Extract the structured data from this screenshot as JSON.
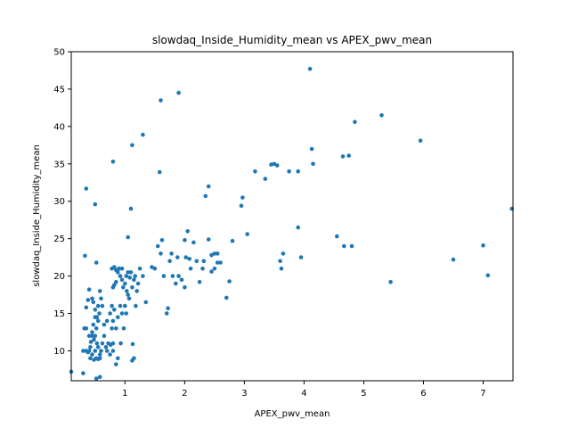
{
  "chart_data": {
    "type": "scatter",
    "title": "slowdaq_Inside_Humidity_mean vs APEX_pwv_mean",
    "xlabel": "APEX_pwv_mean",
    "ylabel": "slowdaq_Inside_Humidity_mean",
    "xlim": [
      0.1,
      7.5
    ],
    "ylim": [
      6,
      50
    ],
    "x_ticks": [
      1,
      2,
      3,
      4,
      5,
      6,
      7
    ],
    "y_ticks": [
      10,
      15,
      20,
      25,
      30,
      35,
      40,
      45,
      50
    ],
    "x_tick_labels": [
      "1",
      "2",
      "3",
      "4",
      "5",
      "6",
      "7"
    ],
    "y_tick_labels": [
      "10",
      "15",
      "20",
      "25",
      "30",
      "35",
      "40",
      "45",
      "50"
    ],
    "grid": false,
    "marker_color": "#1f77b4",
    "points": [
      [
        0.3,
        7.0
      ],
      [
        0.1,
        7.2
      ],
      [
        0.52,
        6.3
      ],
      [
        0.58,
        6.5
      ],
      [
        0.8,
        10.0
      ],
      [
        0.85,
        8.2
      ],
      [
        0.88,
        9.0
      ],
      [
        0.93,
        11.0
      ],
      [
        1.13,
        10.9
      ],
      [
        1.15,
        9.0
      ],
      [
        1.12,
        8.7
      ],
      [
        0.32,
        13.0
      ],
      [
        0.35,
        13.0
      ],
      [
        0.4,
        12.0
      ],
      [
        0.45,
        12.5
      ],
      [
        0.48,
        11.5
      ],
      [
        0.5,
        12.0
      ],
      [
        0.52,
        13.0
      ],
      [
        0.55,
        14.0
      ],
      [
        0.53,
        11.0
      ],
      [
        0.55,
        10.5
      ],
      [
        0.58,
        9.0
      ],
      [
        0.6,
        10.0
      ],
      [
        0.62,
        11.0
      ],
      [
        0.65,
        12.0
      ],
      [
        0.68,
        10.5
      ],
      [
        0.7,
        10.0
      ],
      [
        0.72,
        11.0
      ],
      [
        0.75,
        9.5
      ],
      [
        0.76,
        10.8
      ],
      [
        0.8,
        11.0
      ],
      [
        0.42,
        9.0
      ],
      [
        0.45,
        9.5
      ],
      [
        0.48,
        8.8
      ],
      [
        0.5,
        10.0
      ],
      [
        0.52,
        9.0
      ],
      [
        0.55,
        8.9
      ],
      [
        0.58,
        9.5
      ],
      [
        0.4,
        10.0
      ],
      [
        0.43,
        11.2
      ],
      [
        0.35,
        15.8
      ],
      [
        0.38,
        16.8
      ],
      [
        0.4,
        18.2
      ],
      [
        0.45,
        17.0
      ],
      [
        0.47,
        16.5
      ],
      [
        0.5,
        15.5
      ],
      [
        0.53,
        14.5
      ],
      [
        0.55,
        16.0
      ],
      [
        0.57,
        15.0
      ],
      [
        0.58,
        18.0
      ],
      [
        0.6,
        17.0
      ],
      [
        0.62,
        16.0
      ],
      [
        0.65,
        13.5
      ],
      [
        0.7,
        14.0
      ],
      [
        0.75,
        15.0
      ],
      [
        0.78,
        13.0
      ],
      [
        0.8,
        14.0
      ],
      [
        0.82,
        15.5
      ],
      [
        0.85,
        13.0
      ],
      [
        0.88,
        14.5
      ],
      [
        0.92,
        16.0
      ],
      [
        0.95,
        15.0
      ],
      [
        0.98,
        13.0
      ],
      [
        0.78,
        16.0
      ],
      [
        0.8,
        18.5
      ],
      [
        0.82,
        18.8
      ],
      [
        0.85,
        19.2
      ],
      [
        0.88,
        20.5
      ],
      [
        0.9,
        21.0
      ],
      [
        0.92,
        20.0
      ],
      [
        0.95,
        19.5
      ],
      [
        0.97,
        18.5
      ],
      [
        1.0,
        19.0
      ],
      [
        1.02,
        20.0
      ],
      [
        1.03,
        18.0
      ],
      [
        1.05,
        17.5
      ],
      [
        1.07,
        17.0
      ],
      [
        1.08,
        19.8
      ],
      [
        1.1,
        20.5
      ],
      [
        1.12,
        18.5
      ],
      [
        1.15,
        19.5
      ],
      [
        1.17,
        20.0
      ],
      [
        1.18,
        16.0
      ],
      [
        1.2,
        18.0
      ],
      [
        1.22,
        19.0
      ],
      [
        1.25,
        21.0
      ],
      [
        1.0,
        16.0
      ],
      [
        1.02,
        15.0
      ],
      [
        0.78,
        21.0
      ],
      [
        0.82,
        21.2
      ],
      [
        0.85,
        20.8
      ],
      [
        0.95,
        21.0
      ],
      [
        1.05,
        20.5
      ],
      [
        1.3,
        20.0
      ],
      [
        1.35,
        16.5
      ],
      [
        0.3,
        10.0
      ],
      [
        0.35,
        10.0
      ],
      [
        0.38,
        9.8
      ],
      [
        0.42,
        10.5
      ],
      [
        0.45,
        12.0
      ],
      [
        0.47,
        13.5
      ],
      [
        0.5,
        14.5
      ],
      [
        0.33,
        22.7
      ],
      [
        0.35,
        31.7
      ],
      [
        0.5,
        29.6
      ],
      [
        0.52,
        21.8
      ],
      [
        1.05,
        25.2
      ],
      [
        1.1,
        29.0
      ],
      [
        0.8,
        35.3
      ],
      [
        1.12,
        37.5
      ],
      [
        1.3,
        38.9
      ],
      [
        1.58,
        33.9
      ],
      [
        1.6,
        43.5
      ],
      [
        1.9,
        44.5
      ],
      [
        1.45,
        21.2
      ],
      [
        1.5,
        21.0
      ],
      [
        1.55,
        24.0
      ],
      [
        1.6,
        23.0
      ],
      [
        1.62,
        24.8
      ],
      [
        1.65,
        20.0
      ],
      [
        1.7,
        15.0
      ],
      [
        1.72,
        15.7
      ],
      [
        1.75,
        22.0
      ],
      [
        1.78,
        23.0
      ],
      [
        1.8,
        20.0
      ],
      [
        1.85,
        19.0
      ],
      [
        1.88,
        22.5
      ],
      [
        1.9,
        20.0
      ],
      [
        1.95,
        19.5
      ],
      [
        2.0,
        18.5
      ],
      [
        2.0,
        24.8
      ],
      [
        2.02,
        22.5
      ],
      [
        2.05,
        26.0
      ],
      [
        2.08,
        22.3
      ],
      [
        2.1,
        21.0
      ],
      [
        2.15,
        24.5
      ],
      [
        2.2,
        22.0
      ],
      [
        2.25,
        19.2
      ],
      [
        2.3,
        21.0
      ],
      [
        2.32,
        22.0
      ],
      [
        2.35,
        30.7
      ],
      [
        2.4,
        32.0
      ],
      [
        2.4,
        24.9
      ],
      [
        2.45,
        22.8
      ],
      [
        2.45,
        20.6
      ],
      [
        2.5,
        21.0
      ],
      [
        2.5,
        23.0
      ],
      [
        2.55,
        21.8
      ],
      [
        2.55,
        23.0
      ],
      [
        2.6,
        21.8
      ],
      [
        2.7,
        17.1
      ],
      [
        2.75,
        19.3
      ],
      [
        2.8,
        24.7
      ],
      [
        2.95,
        29.4
      ],
      [
        2.97,
        30.5
      ],
      [
        3.05,
        25.6
      ],
      [
        3.18,
        34.0
      ],
      [
        3.35,
        33.0
      ],
      [
        3.45,
        34.9
      ],
      [
        3.5,
        35.0
      ],
      [
        3.55,
        34.8
      ],
      [
        3.6,
        22.0
      ],
      [
        3.62,
        21.0
      ],
      [
        3.65,
        23.0
      ],
      [
        3.75,
        34.0
      ],
      [
        3.9,
        34.0
      ],
      [
        3.9,
        26.5
      ],
      [
        3.95,
        22.5
      ],
      [
        4.1,
        47.7
      ],
      [
        4.13,
        37.0
      ],
      [
        4.15,
        35.0
      ],
      [
        4.55,
        25.3
      ],
      [
        4.65,
        36.0
      ],
      [
        4.67,
        24.0
      ],
      [
        4.75,
        36.1
      ],
      [
        4.8,
        24.0
      ],
      [
        4.85,
        40.6
      ],
      [
        5.3,
        41.5
      ],
      [
        5.45,
        19.2
      ],
      [
        5.95,
        38.1
      ],
      [
        6.5,
        22.2
      ],
      [
        7.0,
        24.1
      ],
      [
        7.08,
        20.1
      ],
      [
        7.48,
        29.0
      ]
    ]
  }
}
